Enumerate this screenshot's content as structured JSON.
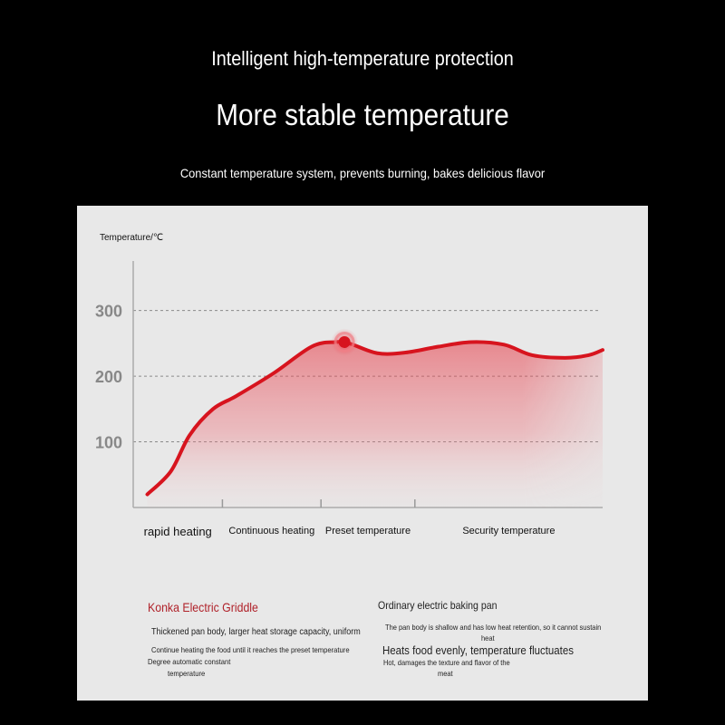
{
  "header": {
    "subtitle": "Intelligent high-temperature protection",
    "title": "More stable temperature",
    "description": "Constant temperature system, prevents burning, bakes delicious flavor"
  },
  "chart_data": {
    "type": "area",
    "ylabel": "Temperature/℃",
    "xlabel": "",
    "yticks": [
      100,
      200,
      300
    ],
    "ylim": [
      0,
      410
    ],
    "xlim": [
      0,
      100
    ],
    "grid": true,
    "phases": [
      {
        "label": "rapid heating",
        "end": 19
      },
      {
        "label": "Continuous heating",
        "end": 40
      },
      {
        "label": "Preset temperature",
        "end": 60
      },
      {
        "label": "Security temperature",
        "end": 100
      }
    ],
    "series": [
      {
        "color": "#d7141e",
        "x": [
          3,
          8,
          12,
          17,
          22,
          30,
          38,
          43,
          46,
          52,
          58,
          65,
          72,
          79,
          85,
          92,
          97,
          100
        ],
        "y": [
          20,
          55,
          110,
          150,
          170,
          205,
          245,
          252,
          250,
          235,
          236,
          245,
          252,
          248,
          232,
          228,
          232,
          240
        ]
      }
    ],
    "highlight": {
      "x": 45,
      "y": 252,
      "color": "#d7141e"
    }
  },
  "comparison": {
    "konka": {
      "title": "Konka Electric Griddle",
      "lines": [
        "Thickened pan body, larger heat storage capacity, uniform",
        "Continue heating the food until it reaches the preset temperature",
        "Degree automatic constant",
        "temperature"
      ]
    },
    "ordinary": {
      "title": "Ordinary electric baking pan",
      "lines": [
        "The pan body is shallow and has low heat retention, so it cannot sustain",
        "heat",
        "Heats food evenly, temperature fluctuates",
        "Hot, damages the texture and flavor of the",
        "meat"
      ]
    }
  }
}
